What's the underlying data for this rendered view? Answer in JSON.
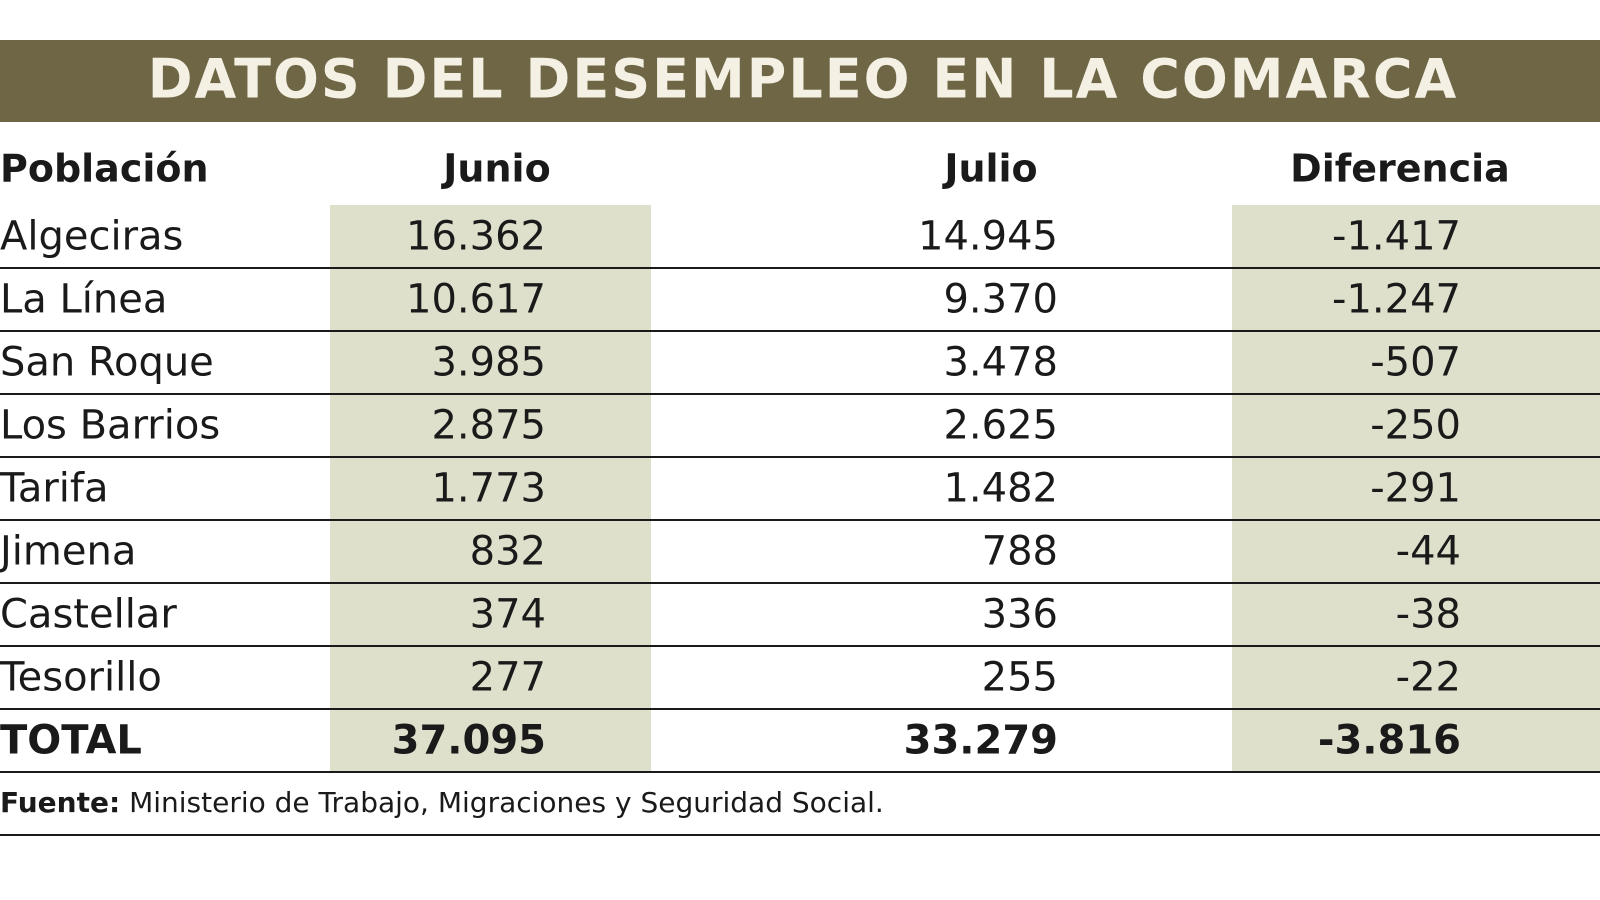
{
  "title": "DATOS DEL DESEMPLEO EN LA COMARCA",
  "table": {
    "header": [
      "Población",
      "Junio",
      "Julio",
      "Diferencia"
    ],
    "rows": [
      [
        "Algeciras",
        "16.362",
        "14.945",
        "-1.417"
      ],
      [
        "La Línea",
        "10.617",
        "9.370",
        "-1.247"
      ],
      [
        "San Roque",
        "3.985",
        "3.478",
        "-507"
      ],
      [
        "Los Barrios",
        "2.875",
        "2.625",
        "-250"
      ],
      [
        "Tarifa",
        "1.773",
        "1.482",
        "-291"
      ],
      [
        "Jimena",
        "832",
        "788",
        "-44"
      ],
      [
        "Castellar",
        "374",
        "336",
        "-38"
      ],
      [
        "Tesorillo",
        "277",
        "255",
        "-22"
      ]
    ],
    "total": [
      "TOTAL",
      "37.095",
      "33.279",
      "-3.816"
    ]
  },
  "source": {
    "label": "Fuente:",
    "text": "Ministerio de Trabajo, Migraciones y Seguridad Social."
  }
}
